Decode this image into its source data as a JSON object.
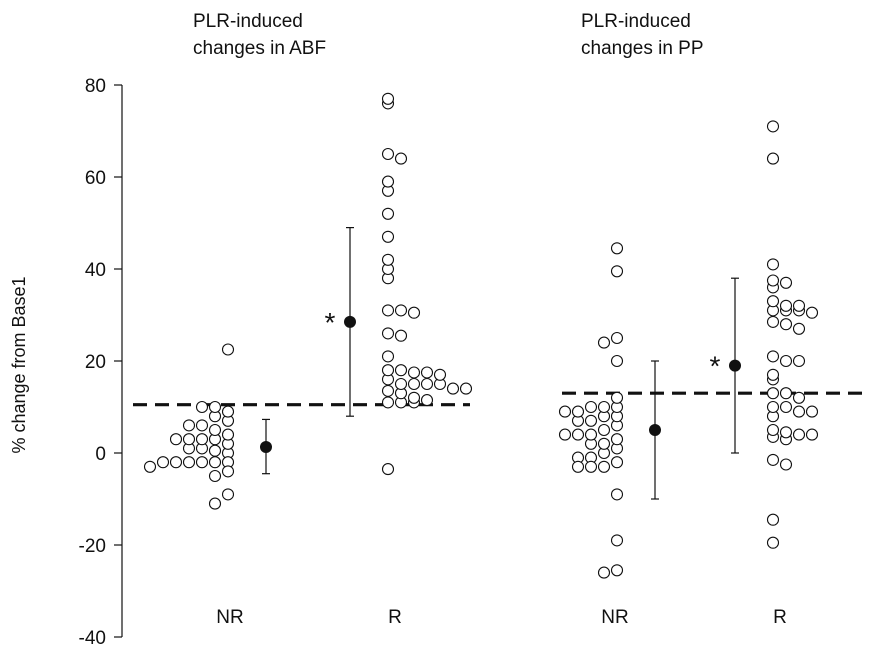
{
  "chart_data": {
    "type": "scatter",
    "ylabel": "% change from Base1",
    "ylim": [
      -40,
      80
    ],
    "yticks": [
      80,
      60,
      40,
      20,
      0,
      -20,
      -40
    ],
    "panels": [
      {
        "title": [
          "PLR-induced",
          "changes in ABF"
        ],
        "threshold": 10.5,
        "groups": [
          {
            "category": "NR",
            "points": [
              -2,
              -2,
              -2,
              -2,
              -2,
              -2,
              0,
              0.5,
              1,
              1,
              2,
              3,
              3,
              3,
              3,
              4,
              5,
              6,
              6,
              7,
              8,
              9,
              10,
              10,
              -3,
              -4,
              -5,
              -9,
              -11,
              22.5
            ],
            "mean": 1.3,
            "sd_low": -4.5,
            "sd_high": 7.3,
            "significant": false
          },
          {
            "category": "R",
            "points": [
              77,
              76,
              65,
              64,
              59,
              57,
              52,
              47,
              42,
              40,
              38,
              31,
              31,
              30.5,
              26,
              25.5,
              21,
              18,
              18,
              17.5,
              17.5,
              17,
              16,
              15,
              15,
              15,
              15,
              14,
              14,
              13.5,
              13,
              12,
              11.5,
              11,
              11,
              11,
              -3.5
            ],
            "mean": 28.5,
            "sd_low": 8,
            "sd_high": 49,
            "significant": true
          }
        ]
      },
      {
        "title": [
          "PLR-induced",
          "changes in PP"
        ],
        "threshold": 13,
        "groups": [
          {
            "category": "NR",
            "points": [
              44.5,
              39.5,
              25,
              24,
              20,
              12,
              10,
              10,
              10,
              9,
              9,
              8,
              8,
              7,
              7,
              6,
              5,
              4,
              4,
              4,
              3,
              2,
              2,
              1,
              0,
              -1,
              -1,
              -2,
              -3,
              -3,
              -3,
              -9,
              -19,
              -25.5,
              -26
            ],
            "mean": 5,
            "sd_low": -10,
            "sd_high": 20,
            "significant": false
          },
          {
            "category": "R",
            "points": [
              71,
              64,
              41,
              37.5,
              37,
              36,
              33,
              32,
              32,
              31,
              31,
              31,
              30.5,
              28.5,
              28,
              27,
              21,
              20,
              20,
              17,
              16,
              13,
              13,
              12,
              10,
              10,
              9,
              9,
              8,
              5,
              4.5,
              4,
              4,
              3.5,
              3,
              -1.5,
              -2.5,
              -14.5,
              -19.5
            ],
            "mean": 19,
            "sd_low": 0,
            "sd_high": 38,
            "significant": true
          }
        ]
      }
    ]
  }
}
